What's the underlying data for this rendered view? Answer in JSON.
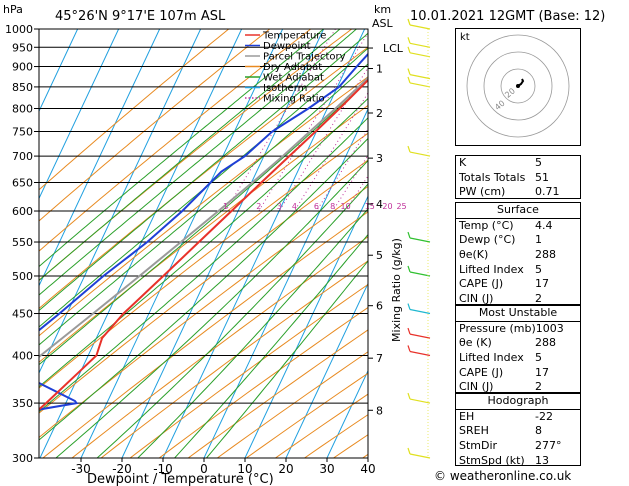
{
  "header": {
    "left_unit": "hPa",
    "location": "45°26'N  9°17'E  107m  ASL",
    "km_label": "km",
    "asl_label": "ASL",
    "datetime": "10.01.2021  12GMT  (Base: 12)"
  },
  "legend": [
    {
      "label": "Temperature",
      "color": "#e8322a",
      "style": "solid"
    },
    {
      "label": "Dewpoint",
      "color": "#1f3fd6",
      "style": "solid"
    },
    {
      "label": "Parcel Trajectory",
      "color": "#9a9a9a",
      "style": "solid"
    },
    {
      "label": "Dry Adiabat",
      "color": "#e88a20",
      "style": "solid"
    },
    {
      "label": "Wet Adiabat",
      "color": "#2aa02a",
      "style": "solid"
    },
    {
      "label": "Isotherm",
      "color": "#20a0e0",
      "style": "solid"
    },
    {
      "label": "Mixing Ratio",
      "color": "#c0309a",
      "style": "dotted"
    }
  ],
  "chart_data": {
    "type": "line",
    "title": "",
    "xlabel": "Dewpoint / Temperature (°C)",
    "ylabel": "hPa",
    "xlim": [
      -40,
      40
    ],
    "ylim": [
      1000,
      300
    ],
    "y_scale": "log",
    "skew": "skew-T",
    "x_ticks": [
      "-30",
      "-20",
      "-10",
      "0",
      "10",
      "20",
      "30",
      "40"
    ],
    "pressure_ticks": [
      "300",
      "350",
      "400",
      "450",
      "500",
      "550",
      "600",
      "650",
      "700",
      "750",
      "800",
      "850",
      "900",
      "950",
      "1000"
    ],
    "height_km_axis": {
      "ticks": [
        {
          "label": "8",
          "p": 343
        },
        {
          "label": "7",
          "p": 397
        },
        {
          "label": "6",
          "p": 460
        },
        {
          "label": "5",
          "p": 530
        },
        {
          "label": "4",
          "p": 612
        },
        {
          "label": "3",
          "p": 696
        },
        {
          "label": "2",
          "p": 790
        },
        {
          "label": "1",
          "p": 895
        },
        {
          "label": "LCL",
          "p": 948
        }
      ]
    },
    "mixing_ratio_axis_label": "Mixing Ratio (g/kg)",
    "mixing_ratio_labels": [
      "1",
      "2",
      "3",
      "4",
      "6",
      "8",
      "10",
      "15",
      "20",
      "25"
    ],
    "series": [
      {
        "name": "Temperature",
        "color": "#e8322a",
        "points": [
          {
            "p": 1000,
            "t": 4.4
          },
          {
            "p": 975,
            "t": 3.2
          },
          {
            "p": 950,
            "t": 1.6
          },
          {
            "p": 925,
            "t": 0.0
          },
          {
            "p": 900,
            "t": -1.6
          },
          {
            "p": 850,
            "t": -4.2
          },
          {
            "p": 800,
            "t": -7.0
          },
          {
            "p": 750,
            "t": -10.2
          },
          {
            "p": 700,
            "t": -13.8
          },
          {
            "p": 650,
            "t": -17.6
          },
          {
            "p": 600,
            "t": -21.6
          },
          {
            "p": 550,
            "t": -26.0
          },
          {
            "p": 500,
            "t": -30.8
          },
          {
            "p": 450,
            "t": -36.2
          },
          {
            "p": 420,
            "t": -38.6
          },
          {
            "p": 400,
            "t": -38.0
          },
          {
            "p": 380,
            "t": -40.6
          },
          {
            "p": 350,
            "t": -44.8
          },
          {
            "p": 320,
            "t": -49.8
          },
          {
            "p": 300,
            "t": -53.6
          }
        ]
      },
      {
        "name": "Dewpoint",
        "color": "#1f3fd6",
        "points": [
          {
            "p": 1000,
            "t": 1.0
          },
          {
            "p": 975,
            "t": -0.4
          },
          {
            "p": 960,
            "t": -2.2
          },
          {
            "p": 950,
            "t": -5.6
          },
          {
            "p": 900,
            "t": -7.6
          },
          {
            "p": 850,
            "t": -9.6
          },
          {
            "p": 800,
            "t": -14.6
          },
          {
            "p": 750,
            "t": -20.8
          },
          {
            "p": 700,
            "t": -24.6
          },
          {
            "p": 670,
            "t": -28.6
          },
          {
            "p": 600,
            "t": -33.6
          },
          {
            "p": 550,
            "t": -38.6
          },
          {
            "p": 530,
            "t": -41.2
          },
          {
            "p": 500,
            "t": -45.4
          },
          {
            "p": 450,
            "t": -51.8
          },
          {
            "p": 400,
            "t": -59.6
          },
          {
            "p": 390,
            "t": -60.0
          },
          {
            "p": 352,
            "t": -38.0
          },
          {
            "p": 350,
            "t": -37.4
          },
          {
            "p": 340,
            "t": -50.8
          },
          {
            "p": 330,
            "t": -51.0
          },
          {
            "p": 320,
            "t": -48.2
          },
          {
            "p": 300,
            "t": -62.4
          }
        ]
      },
      {
        "name": "Parcel Trajectory",
        "color": "#9a9a9a",
        "points": [
          {
            "p": 1000,
            "t": 4.4
          },
          {
            "p": 948,
            "t": 0.6
          },
          {
            "p": 900,
            "t": -2.0
          },
          {
            "p": 850,
            "t": -4.8
          },
          {
            "p": 800,
            "t": -8.0
          },
          {
            "p": 750,
            "t": -11.6
          },
          {
            "p": 700,
            "t": -15.4
          },
          {
            "p": 650,
            "t": -19.8
          },
          {
            "p": 600,
            "t": -24.8
          },
          {
            "p": 550,
            "t": -30.4
          },
          {
            "p": 500,
            "t": -36.6
          },
          {
            "p": 450,
            "t": -43.6
          },
          {
            "p": 400,
            "t": -51.6
          },
          {
            "p": 350,
            "t": -60.6
          },
          {
            "p": 300,
            "t": -70.6
          }
        ]
      }
    ]
  },
  "hodograph": {
    "unit_label": "kt",
    "ring_labels": [
      "20",
      "40"
    ],
    "ring_speeds_kt": [
      20,
      40,
      60
    ]
  },
  "indices": [
    {
      "label": "K",
      "value": "5"
    },
    {
      "label": "Totals Totals",
      "value": "51"
    },
    {
      "label": "PW (cm)",
      "value": "0.71"
    }
  ],
  "surface": {
    "title": "Surface",
    "rows": [
      {
        "label": "Temp (°C)",
        "value": "4.4"
      },
      {
        "label": "Dewp (°C)",
        "value": "1"
      },
      {
        "label": "θe(K)",
        "value": "288"
      },
      {
        "label": "Lifted Index",
        "value": "5"
      },
      {
        "label": "CAPE (J)",
        "value": "17"
      },
      {
        "label": "CIN (J)",
        "value": "2"
      }
    ]
  },
  "most_unstable": {
    "title": "Most Unstable",
    "rows": [
      {
        "label": "Pressure (mb)",
        "value": "1003"
      },
      {
        "label": "θe (K)",
        "value": "288"
      },
      {
        "label": "Lifted Index",
        "value": "5"
      },
      {
        "label": "CAPE (J)",
        "value": "17"
      },
      {
        "label": "CIN (J)",
        "value": "2"
      }
    ]
  },
  "hodograph_table": {
    "title": "Hodograph",
    "rows": [
      {
        "label": "EH",
        "value": "-22"
      },
      {
        "label": "SREH",
        "value": "8"
      },
      {
        "label": "StmDir",
        "value": "277°"
      },
      {
        "label": "StmSpd (kt)",
        "value": "13"
      }
    ]
  },
  "colors": {
    "wind_barb_upper": "#e0e020",
    "wind_barb_red": "#e8322a",
    "wind_barb_cyan": "#20b8d0",
    "wind_barb_green": "#30c030"
  },
  "copyright": "© weatheronline.co.uk"
}
